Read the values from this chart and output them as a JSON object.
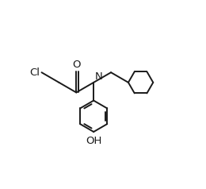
{
  "background_color": "#ffffff",
  "line_color": "#1a1a1a",
  "line_width": 1.4,
  "font_size": 9.5,
  "figsize": [
    2.6,
    2.38
  ],
  "dpi": 100,
  "xlim": [
    0,
    10
  ],
  "ylim": [
    0,
    9.2
  ]
}
